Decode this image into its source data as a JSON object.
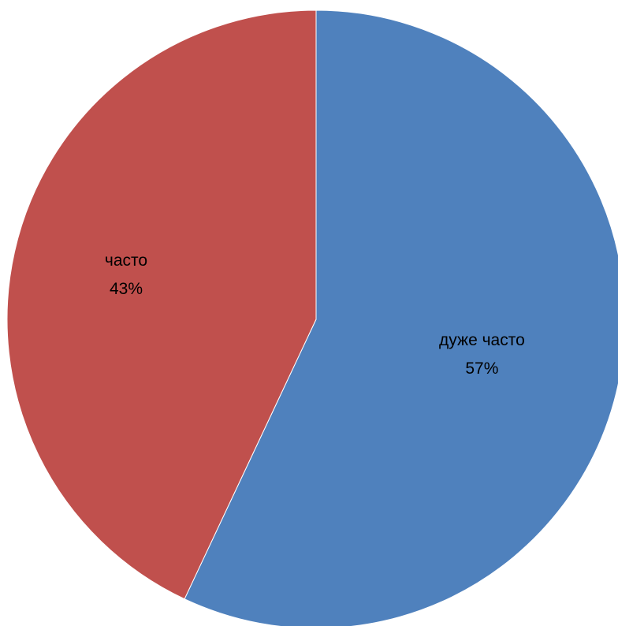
{
  "chart_data": {
    "type": "pie",
    "slices": [
      {
        "label": "дуже часто",
        "value": 57,
        "value_label": "57%",
        "color": "#4f81bd"
      },
      {
        "label": "часто",
        "value": 43,
        "value_label": "43%",
        "color": "#c0504d"
      }
    ],
    "start_angle": "top",
    "direction": "clockwise"
  }
}
